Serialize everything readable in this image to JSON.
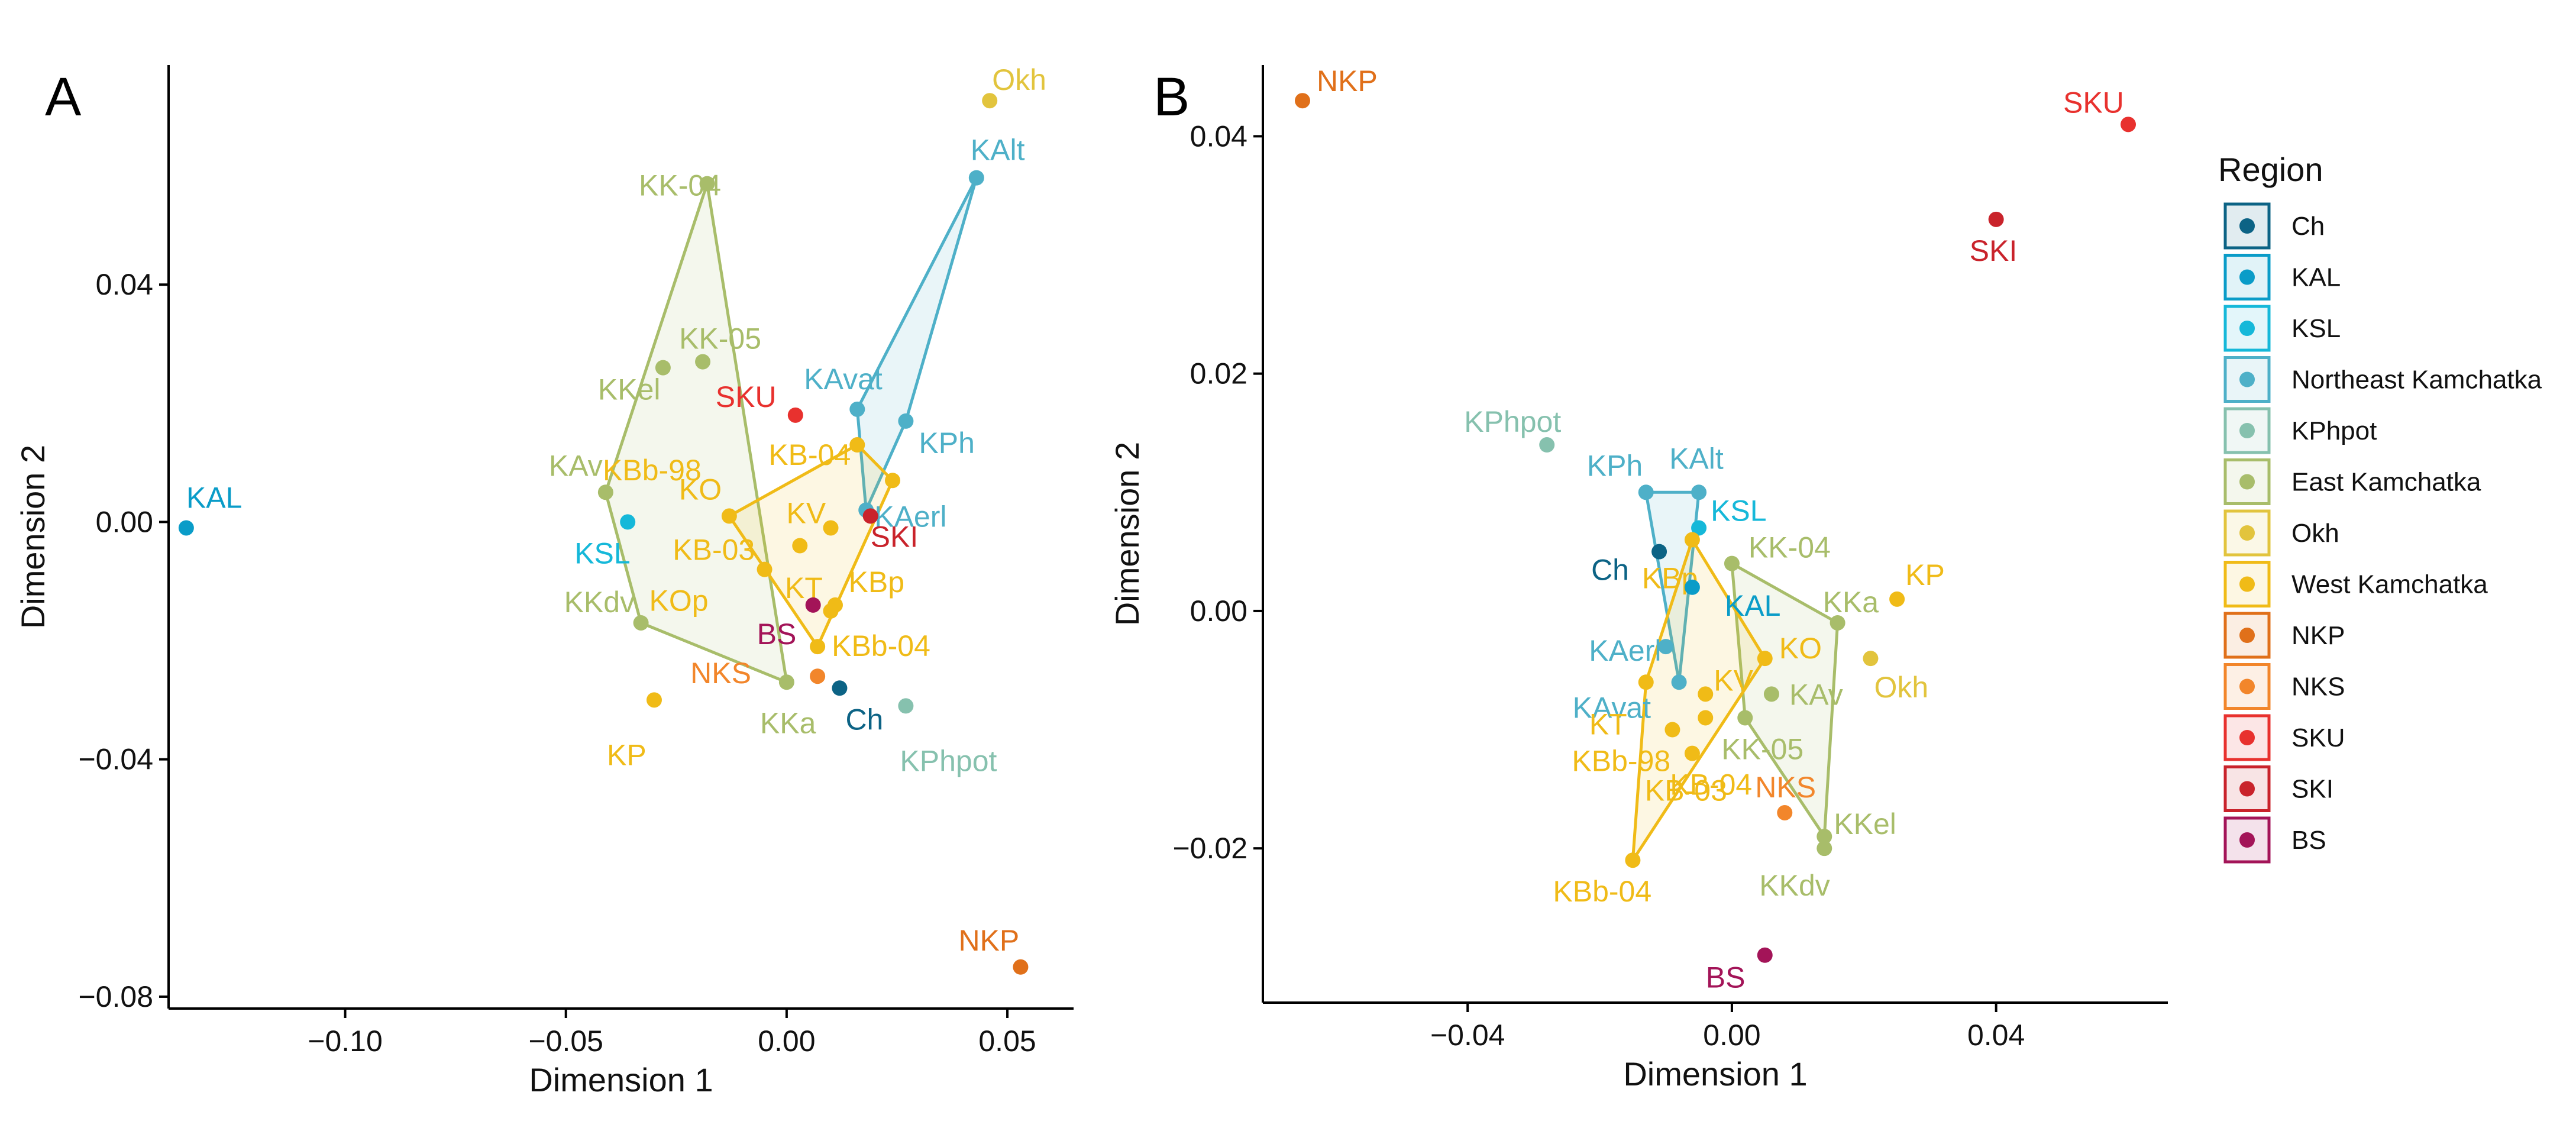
{
  "colors": {
    "Ch": "#0c6385",
    "KAL": "#0a9cc8",
    "KSL": "#15b8d9",
    "Northeast Kamchatka": "#4eb0c8",
    "KPhpot": "#86c1ae",
    "East Kamchatka": "#a8bd6a",
    "Okh": "#e2c43d",
    "West Kamchatka": "#f0bb17",
    "NKP": "#e0701a",
    "NKS": "#f2862b",
    "SKU": "#e8312e",
    "SKI": "#c9232b",
    "BS": "#a31458"
  },
  "legend": {
    "title": "Region",
    "items": [
      "Ch",
      "KAL",
      "KSL",
      "Northeast Kamchatka",
      "KPhpot",
      "East Kamchatka",
      "Okh",
      "West Kamchatka",
      "NKP",
      "NKS",
      "SKU",
      "SKI",
      "BS"
    ]
  },
  "chart_data": [
    {
      "panel": "A",
      "type": "scatter",
      "xlabel": "Dimension 1",
      "ylabel": "Dimension 2",
      "xlim": [
        -0.14,
        0.065
      ],
      "ylim": [
        -0.082,
        0.077
      ],
      "xticks": [
        -0.1,
        -0.05,
        0.0,
        0.05
      ],
      "xtick_labels": [
        "−0.10",
        "−0.05",
        "0.00",
        "0.05"
      ],
      "yticks": [
        -0.08,
        -0.04,
        0.0,
        0.04
      ],
      "ytick_labels": [
        "−0.08",
        "−0.04",
        "0.00",
        "0.04"
      ],
      "points": [
        {
          "label": "KAL",
          "region": "KAL",
          "x": -0.136,
          "y": -0.001
        },
        {
          "label": "Okh",
          "region": "Okh",
          "x": 0.046,
          "y": 0.071
        },
        {
          "label": "KAlt",
          "region": "Northeast Kamchatka",
          "x": 0.043,
          "y": 0.058
        },
        {
          "label": "KK-04",
          "region": "East Kamchatka",
          "x": -0.018,
          "y": 0.057
        },
        {
          "label": "KK-05",
          "region": "East Kamchatka",
          "x": -0.019,
          "y": 0.027
        },
        {
          "label": "KKel",
          "region": "East Kamchatka",
          "x": -0.028,
          "y": 0.026
        },
        {
          "label": "SKU",
          "region": "SKU",
          "x": 0.002,
          "y": 0.018
        },
        {
          "label": "KAvat",
          "region": "Northeast Kamchatka",
          "x": 0.016,
          "y": 0.019
        },
        {
          "label": "KPh",
          "region": "Northeast Kamchatka",
          "x": 0.027,
          "y": 0.017
        },
        {
          "label": "KB-04",
          "region": "West Kamchatka",
          "x": 0.016,
          "y": 0.013
        },
        {
          "label": "KAv",
          "region": "East Kamchatka",
          "x": -0.041,
          "y": 0.005
        },
        {
          "label": "KAerl",
          "region": "Northeast Kamchatka",
          "x": 0.018,
          "y": 0.002
        },
        {
          "label": "KSL",
          "region": "KSL",
          "x": -0.036,
          "y": 0.0
        },
        {
          "label": "KO",
          "region": "West Kamchatka",
          "x": -0.013,
          "y": 0.001
        },
        {
          "label": "KV",
          "region": "West Kamchatka",
          "x": 0.01,
          "y": -0.001
        },
        {
          "label": "KB-03",
          "region": "West Kamchatka",
          "x": 0.003,
          "y": -0.004
        },
        {
          "label": "SKI",
          "region": "SKI",
          "x": 0.019,
          "y": 0.001
        },
        {
          "label": "KOp",
          "region": "West Kamchatka",
          "x": -0.005,
          "y": -0.008
        },
        {
          "label": "KT",
          "region": "West Kamchatka",
          "x": 0.011,
          "y": -0.014
        },
        {
          "label": "KBp",
          "region": "West Kamchatka",
          "x": 0.01,
          "y": -0.015
        },
        {
          "label": "KKdv",
          "region": "East Kamchatka",
          "x": -0.033,
          "y": -0.017
        },
        {
          "label": "BS",
          "region": "BS",
          "x": 0.006,
          "y": -0.014
        },
        {
          "label": "KBb-04",
          "region": "West Kamchatka",
          "x": 0.007,
          "y": -0.021
        },
        {
          "label": "KBb-98",
          "region": "West Kamchatka",
          "x": 0.024,
          "y": 0.007
        },
        {
          "label": "NKS",
          "region": "NKS",
          "x": 0.007,
          "y": -0.026
        },
        {
          "label": "KKa",
          "region": "East Kamchatka",
          "x": 0.0,
          "y": -0.027
        },
        {
          "label": "Ch",
          "region": "Ch",
          "x": 0.012,
          "y": -0.028
        },
        {
          "label": "KPhpot",
          "region": "KPhpot",
          "x": 0.027,
          "y": -0.031
        },
        {
          "label": "KP",
          "region": "West Kamchatka",
          "x": -0.03,
          "y": -0.03
        },
        {
          "label": "NKP",
          "region": "NKP",
          "x": 0.053,
          "y": -0.075
        }
      ],
      "hulls": [
        {
          "region": "East Kamchatka",
          "members": [
            "KK-04",
            "KK-05",
            "KAv",
            "KKdv",
            "KKa"
          ]
        },
        {
          "region": "Northeast Kamchatka",
          "members": [
            "KAlt",
            "KPh",
            "KAvat",
            "KAerl"
          ]
        },
        {
          "region": "West Kamchatka",
          "members": [
            "KO",
            "KB-04",
            "KBb-98",
            "KBb-04",
            "KT"
          ]
        }
      ]
    },
    {
      "panel": "B",
      "type": "scatter",
      "xlabel": "Dimension 1",
      "ylabel": "Dimension 2",
      "xlim": [
        -0.071,
        0.066
      ],
      "ylim": [
        -0.033,
        0.046
      ],
      "xticks": [
        -0.04,
        0.0,
        0.04
      ],
      "xtick_labels": [
        "−0.04",
        "0.00",
        "0.04"
      ],
      "yticks": [
        -0.02,
        0.0,
        0.02,
        0.04
      ],
      "ytick_labels": [
        "−0.02",
        "0.00",
        "0.02",
        "0.04"
      ],
      "points": [
        {
          "label": "NKP",
          "region": "NKP",
          "x": -0.065,
          "y": 0.043
        },
        {
          "label": "SKU",
          "region": "SKU",
          "x": 0.06,
          "y": 0.041
        },
        {
          "label": "SKI",
          "region": "SKI",
          "x": 0.04,
          "y": 0.033
        },
        {
          "label": "KPhpot",
          "region": "KPhpot",
          "x": -0.028,
          "y": 0.014
        },
        {
          "label": "KPh",
          "region": "Northeast Kamchatka",
          "x": -0.013,
          "y": 0.01
        },
        {
          "label": "KAlt",
          "region": "Northeast Kamchatka",
          "x": -0.005,
          "y": 0.01
        },
        {
          "label": "KSL",
          "region": "KSL",
          "x": -0.005,
          "y": 0.007
        },
        {
          "label": "Ch",
          "region": "Ch",
          "x": -0.011,
          "y": 0.005
        },
        {
          "label": "KK-04",
          "region": "East Kamchatka",
          "x": 0.0,
          "y": 0.004
        },
        {
          "label": "KBp",
          "region": "West Kamchatka",
          "x": -0.006,
          "y": 0.006
        },
        {
          "label": "KAL",
          "region": "KAL",
          "x": -0.006,
          "y": 0.002
        },
        {
          "label": "KKa",
          "region": "East Kamchatka",
          "x": 0.016,
          "y": -0.001
        },
        {
          "label": "KP",
          "region": "West Kamchatka",
          "x": 0.025,
          "y": 0.001
        },
        {
          "label": "KAerl",
          "region": "Northeast Kamchatka",
          "x": -0.01,
          "y": -0.003
        },
        {
          "label": "KO",
          "region": "West Kamchatka",
          "x": 0.005,
          "y": -0.004
        },
        {
          "label": "Okh",
          "region": "Okh",
          "x": 0.021,
          "y": -0.004
        },
        {
          "label": "KAvat",
          "region": "Northeast Kamchatka",
          "x": -0.008,
          "y": -0.006
        },
        {
          "label": "KV",
          "region": "West Kamchatka",
          "x": -0.004,
          "y": -0.007
        },
        {
          "label": "KAv",
          "region": "East Kamchatka",
          "x": 0.006,
          "y": -0.007
        },
        {
          "label": "KT",
          "region": "West Kamchatka",
          "x": -0.013,
          "y": -0.006
        },
        {
          "label": "KK-05",
          "region": "East Kamchatka",
          "x": 0.002,
          "y": -0.009
        },
        {
          "label": "KBb-98",
          "region": "West Kamchatka",
          "x": -0.009,
          "y": -0.01
        },
        {
          "label": "KB-03",
          "region": "West Kamchatka",
          "x": -0.006,
          "y": -0.012
        },
        {
          "label": "KB-04",
          "region": "West Kamchatka",
          "x": -0.004,
          "y": -0.009
        },
        {
          "label": "NKS",
          "region": "NKS",
          "x": 0.008,
          "y": -0.017
        },
        {
          "label": "KKel",
          "region": "East Kamchatka",
          "x": 0.014,
          "y": -0.019
        },
        {
          "label": "KKdv",
          "region": "East Kamchatka",
          "x": 0.014,
          "y": -0.02
        },
        {
          "label": "KBb-04",
          "region": "West Kamchatka",
          "x": -0.015,
          "y": -0.021
        },
        {
          "label": "BS",
          "region": "BS",
          "x": 0.005,
          "y": -0.029
        }
      ],
      "hulls": [
        {
          "region": "Northeast Kamchatka",
          "members": [
            "KPh",
            "KAlt",
            "KAvat"
          ]
        },
        {
          "region": "East Kamchatka",
          "members": [
            "KK-04",
            "KKa",
            "KKel",
            "KK-05"
          ]
        },
        {
          "region": "West Kamchatka",
          "members": [
            "KBp",
            "KO",
            "KB-03",
            "KBb-04",
            "KT"
          ]
        }
      ]
    }
  ]
}
